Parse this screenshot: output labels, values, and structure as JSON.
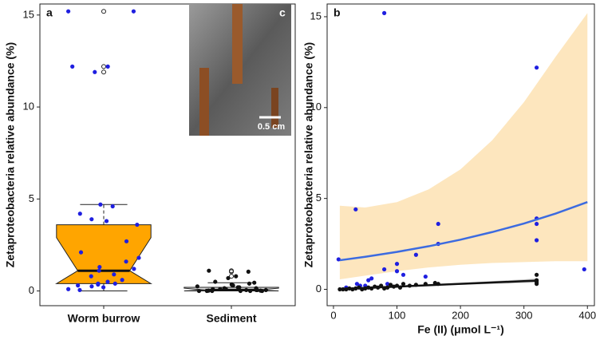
{
  "chart_data": [
    {
      "type": "box",
      "label": "a",
      "ylabel": "Zetaproteobacteria relative abundance (%)",
      "categories": [
        "Worm burrow",
        "Sediment"
      ],
      "ylim": [
        -0.8,
        15.6
      ],
      "yticks": [
        0,
        5,
        10,
        15
      ],
      "boxes": [
        {
          "whisker_low": 0,
          "q1": 0.4,
          "median": 1.1,
          "q3": 3.6,
          "whisker_high": 4.7,
          "notch_low": 0.4,
          "notch_high": 2.9,
          "color": "#ffa500",
          "outliers": [
            11.9,
            12.2,
            15.2
          ]
        },
        {
          "whisker_low": 0,
          "q1": 0,
          "median": 0.05,
          "q3": 0.2,
          "whisker_high": 0.45,
          "notch_low": 0,
          "notch_high": 0.15,
          "color": "#d9d9d9",
          "outliers": [
            0.8,
            1.05,
            1.1
          ]
        }
      ],
      "points": [
        {
          "color": "#1f1fe0",
          "values": [
            15.2,
            15.2,
            12.2,
            12.2,
            11.9,
            4.7,
            4.6,
            4.2,
            3.9,
            3.8,
            3.6,
            2.7,
            2.1,
            1.8,
            1.6,
            1.3,
            1.2,
            1.1,
            0.9,
            0.8,
            0.6,
            0.5,
            0.4,
            0.35,
            0.3,
            0.25,
            0.2,
            0.1,
            0.05,
            0.4
          ]
        },
        {
          "color": "#111111",
          "values": [
            1.1,
            1.05,
            0.8,
            0.7,
            0.5,
            0.45,
            0.4,
            0.35,
            0.3,
            0.3,
            0.25,
            0.2,
            0.2,
            0.15,
            0.15,
            0.1,
            0.1,
            0.1,
            0.05,
            0.05,
            0.05,
            0.05,
            0,
            0,
            0,
            0,
            0,
            0,
            0.02,
            0.02
          ]
        }
      ],
      "inset": {
        "label": "c",
        "scale_label": "0.5 cm"
      }
    },
    {
      "type": "scatter",
      "label": "b",
      "ylabel": "Zetaproteobacteria relative abundance (%)",
      "xlabel": "Fe (II) (μmol L⁻¹)",
      "xlim": [
        -10,
        411
      ],
      "xticks": [
        0,
        100,
        200,
        300,
        400
      ],
      "ylim": [
        -0.9,
        15.7
      ],
      "yticks": [
        0,
        5,
        10,
        15
      ],
      "fits": [
        {
          "color": "#3c6be0",
          "band_color": "#fde2b3",
          "x": [
            10,
            50,
            100,
            150,
            200,
            250,
            300,
            350,
            400
          ],
          "values": [
            1.6,
            1.79,
            2.06,
            2.37,
            2.73,
            3.15,
            3.62,
            4.17,
            4.8
          ],
          "lower": [
            0.55,
            0.75,
            1.0,
            1.2,
            1.35,
            1.45,
            1.5,
            1.55,
            1.55
          ],
          "upper": [
            4.6,
            4.5,
            4.8,
            5.5,
            6.6,
            8.2,
            10.3,
            12.8,
            15.2
          ]
        },
        {
          "color": "#111111",
          "band_color": "#bdbdbd",
          "x": [
            10,
            100,
            200,
            300,
            320
          ],
          "values": [
            0.02,
            0.15,
            0.3,
            0.45,
            0.48
          ],
          "lower": [
            0,
            0.12,
            0.25,
            0.35,
            0.37
          ],
          "upper": [
            0.04,
            0.18,
            0.35,
            0.55,
            0.6
          ]
        }
      ],
      "series": [
        {
          "color": "#1f1fe0",
          "x": [
            8,
            35,
            37,
            42,
            55,
            60,
            80,
            80,
            85,
            100,
            100,
            110,
            130,
            145,
            165,
            165,
            320,
            320,
            320,
            320,
            395,
            20,
            50
          ],
          "values": [
            1.65,
            4.4,
            0.3,
            0.2,
            0.5,
            0.6,
            15.2,
            1.1,
            0.3,
            1.4,
            1.0,
            0.8,
            1.9,
            0.7,
            3.6,
            2.5,
            12.2,
            3.9,
            3.6,
            2.7,
            1.1,
            0.1,
            0.2
          ]
        },
        {
          "color": "#111111",
          "x": [
            10,
            15,
            20,
            25,
            30,
            35,
            40,
            45,
            50,
            55,
            60,
            65,
            70,
            75,
            80,
            85,
            90,
            95,
            100,
            105,
            110,
            120,
            130,
            145,
            160,
            165,
            320,
            320,
            320,
            320
          ],
          "values": [
            0,
            0,
            0,
            0.05,
            0,
            0.05,
            0.1,
            0,
            0.05,
            0.1,
            0.05,
            0.15,
            0.1,
            0.2,
            0.05,
            0.1,
            0.25,
            0.15,
            0.2,
            0.1,
            0.3,
            0.2,
            0.25,
            0.3,
            0.35,
            0.3,
            0.8,
            0.5,
            0.4,
            0.3
          ]
        }
      ]
    }
  ]
}
